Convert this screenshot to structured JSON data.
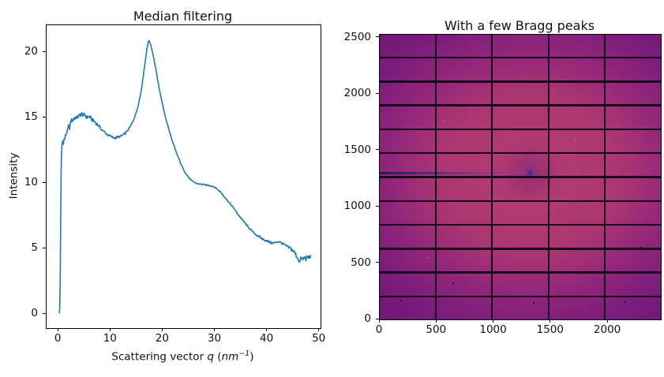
{
  "figure": {
    "background_color": "#ffffff"
  },
  "chart_data": [
    {
      "type": "line",
      "title": "Median filtering",
      "xlabel": "Scattering vector q (nm⁻¹)",
      "xlabel_rich": {
        "prefix": "Scattering vector ",
        "q": "q",
        "open": " (",
        "unit": "nm",
        "sup": "−1",
        "close": ")"
      },
      "ylabel": "Intensity",
      "x_ticks": [
        0,
        10,
        20,
        30,
        40,
        50
      ],
      "y_ticks": [
        0,
        5,
        10,
        15,
        20
      ],
      "xlim": [
        -2.3,
        50.2
      ],
      "ylim": [
        -1.08,
        22.05
      ],
      "grid": false,
      "legend": null,
      "line_color": "#1f77b4",
      "line_width": 1.6,
      "noise_profile": [
        {
          "x_max": 0.6,
          "amp": 0.04
        },
        {
          "x_max": 8,
          "amp": 0.13
        },
        {
          "x_max": 13,
          "amp": 0.09
        },
        {
          "x_max": 19,
          "amp": 0.06
        },
        {
          "x_max": 31,
          "amp": 0.05
        },
        {
          "x_max": 38,
          "amp": 0.06
        },
        {
          "x_max": 44,
          "amp": 0.09
        },
        {
          "x_max": 60,
          "amp": 0.16
        }
      ],
      "points": [
        [
          0.15,
          0.1
        ],
        [
          0.22,
          0.5
        ],
        [
          0.3,
          2.2
        ],
        [
          0.36,
          5.0
        ],
        [
          0.42,
          8.2
        ],
        [
          0.48,
          10.6
        ],
        [
          0.55,
          12.0
        ],
        [
          0.65,
          12.9
        ],
        [
          0.78,
          13.2
        ],
        [
          0.9,
          12.95
        ],
        [
          1.0,
          13.4
        ],
        [
          1.15,
          13.3
        ],
        [
          1.3,
          13.6
        ],
        [
          1.5,
          13.8
        ],
        [
          1.7,
          14.0
        ],
        [
          1.9,
          14.35
        ],
        [
          2.1,
          14.2
        ],
        [
          2.3,
          14.6
        ],
        [
          2.5,
          14.85
        ],
        [
          2.7,
          14.7
        ],
        [
          2.9,
          15.0
        ],
        [
          3.1,
          14.9
        ],
        [
          3.3,
          15.05
        ],
        [
          3.6,
          15.0
        ],
        [
          3.9,
          15.15
        ],
        [
          4.2,
          15.2
        ],
        [
          4.4,
          15.3
        ],
        [
          4.7,
          15.15
        ],
        [
          5.0,
          15.25
        ],
        [
          5.3,
          15.05
        ],
        [
          5.6,
          15.0
        ],
        [
          5.9,
          15.1
        ],
        [
          6.2,
          14.95
        ],
        [
          6.5,
          14.8
        ],
        [
          6.8,
          14.75
        ],
        [
          7.1,
          14.6
        ],
        [
          7.5,
          14.45
        ],
        [
          7.9,
          14.25
        ],
        [
          8.3,
          14.05
        ],
        [
          8.8,
          13.9
        ],
        [
          9.3,
          13.7
        ],
        [
          9.8,
          13.6
        ],
        [
          10.3,
          13.5
        ],
        [
          10.8,
          13.45
        ],
        [
          11.3,
          13.5
        ],
        [
          11.8,
          13.55
        ],
        [
          12.3,
          13.65
        ],
        [
          12.8,
          13.8
        ],
        [
          13.3,
          14.05
        ],
        [
          13.8,
          14.35
        ],
        [
          14.2,
          14.7
        ],
        [
          14.6,
          15.05
        ],
        [
          15.0,
          15.55
        ],
        [
          15.4,
          16.2
        ],
        [
          15.8,
          17.0
        ],
        [
          16.1,
          17.8
        ],
        [
          16.4,
          18.7
        ],
        [
          16.7,
          19.6
        ],
        [
          17.0,
          20.4
        ],
        [
          17.2,
          20.85
        ],
        [
          17.45,
          20.8
        ],
        [
          17.7,
          20.5
        ],
        [
          18.0,
          20.0
        ],
        [
          18.4,
          19.2
        ],
        [
          18.8,
          18.3
        ],
        [
          19.2,
          17.4
        ],
        [
          19.7,
          16.4
        ],
        [
          20.2,
          15.5
        ],
        [
          20.7,
          14.7
        ],
        [
          21.2,
          14.0
        ],
        [
          21.8,
          13.2
        ],
        [
          22.4,
          12.5
        ],
        [
          23.0,
          11.9
        ],
        [
          23.6,
          11.3
        ],
        [
          24.2,
          10.85
        ],
        [
          24.8,
          10.5
        ],
        [
          25.4,
          10.2
        ],
        [
          26.0,
          10.05
        ],
        [
          26.6,
          9.95
        ],
        [
          27.4,
          9.9
        ],
        [
          28.2,
          9.85
        ],
        [
          29.0,
          9.8
        ],
        [
          29.6,
          9.75
        ],
        [
          30.2,
          9.6
        ],
        [
          30.8,
          9.4
        ],
        [
          31.4,
          9.15
        ],
        [
          32.0,
          8.85
        ],
        [
          32.6,
          8.55
        ],
        [
          33.2,
          8.25
        ],
        [
          33.8,
          7.95
        ],
        [
          34.4,
          7.6
        ],
        [
          35.0,
          7.3
        ],
        [
          35.6,
          7.0
        ],
        [
          36.2,
          6.7
        ],
        [
          36.8,
          6.45
        ],
        [
          37.4,
          6.2
        ],
        [
          38.0,
          6.0
        ],
        [
          38.6,
          5.85
        ],
        [
          39.2,
          5.7
        ],
        [
          39.8,
          5.6
        ],
        [
          40.4,
          5.5
        ],
        [
          41.0,
          5.4
        ],
        [
          41.6,
          5.45
        ],
        [
          42.2,
          5.55
        ],
        [
          42.8,
          5.4
        ],
        [
          43.4,
          5.25
        ],
        [
          44.0,
          5.1
        ],
        [
          44.6,
          4.95
        ],
        [
          45.2,
          4.7
        ],
        [
          45.8,
          4.3
        ],
        [
          46.2,
          3.95
        ],
        [
          46.5,
          4.3
        ],
        [
          46.8,
          4.1
        ],
        [
          47.1,
          4.35
        ],
        [
          47.4,
          4.2
        ],
        [
          47.7,
          4.35
        ],
        [
          48.0,
          4.3
        ],
        [
          48.3,
          4.45
        ]
      ]
    },
    {
      "type": "heatmap",
      "title": "With a few Bragg peaks",
      "x_ticks": [
        0,
        500,
        1000,
        1500,
        2000
      ],
      "y_ticks": [
        0,
        500,
        1000,
        1500,
        2000,
        2500
      ],
      "extent": [
        0,
        2463,
        0,
        2527
      ],
      "description": "Pilatus-style 2D detector image, magma-like purple colormap, diffuse scattering ring with black module gaps, masked beamline streak and a few faint Bragg peak spots",
      "colors": {
        "ring_core": "#a63370",
        "ring": "#b23a72",
        "ring_outer": "#a93572",
        "mid": "#93277a",
        "outer": "#7b1c7c",
        "corner": "#6c1676",
        "center_dim": "rgba(110,35,125,0.35)",
        "gap": "rgba(13,2,22,0.93)",
        "streak_start": "#1f1c58",
        "streak_mid": "#3a2d72",
        "streak_fade": "rgba(135,72,155,0.35)",
        "beamstop_dot": "#3a32a2",
        "bragg": "rgba(216,94,58,0.65)",
        "speck": "rgba(22,4,36,0.85)"
      },
      "beam_center": [
        1318,
        1302
      ],
      "module_gaps_x": [
        490.5,
        984.5,
        1478.5,
        1972.5
      ],
      "module_gaps_y": [
        203.5,
        415.5,
        627.5,
        839.5,
        1051.5,
        1263.5,
        1475.5,
        1687.5,
        1899.5,
        2111.5,
        2323.5
      ],
      "beam_streak": {
        "y": 1302,
        "x_start": 0,
        "x_end": 1318
      },
      "bragg_peaks": [
        [
          1086,
          917
        ],
        [
          760,
          1113
        ],
        [
          1625,
          785
        ],
        [
          905,
          646
        ],
        [
          1713,
          1586
        ],
        [
          563,
          1756
        ],
        [
          1895,
          1245
        ],
        [
          1128,
          1904
        ],
        [
          420,
          550
        ],
        [
          2050,
          1430
        ],
        [
          1460,
          980
        ],
        [
          980,
          1490
        ]
      ],
      "dark_specks": [
        [
          187,
          168
        ],
        [
          2151,
          154
        ],
        [
          1349,
          147
        ],
        [
          640,
          320
        ],
        [
          2290,
          640
        ]
      ]
    }
  ]
}
